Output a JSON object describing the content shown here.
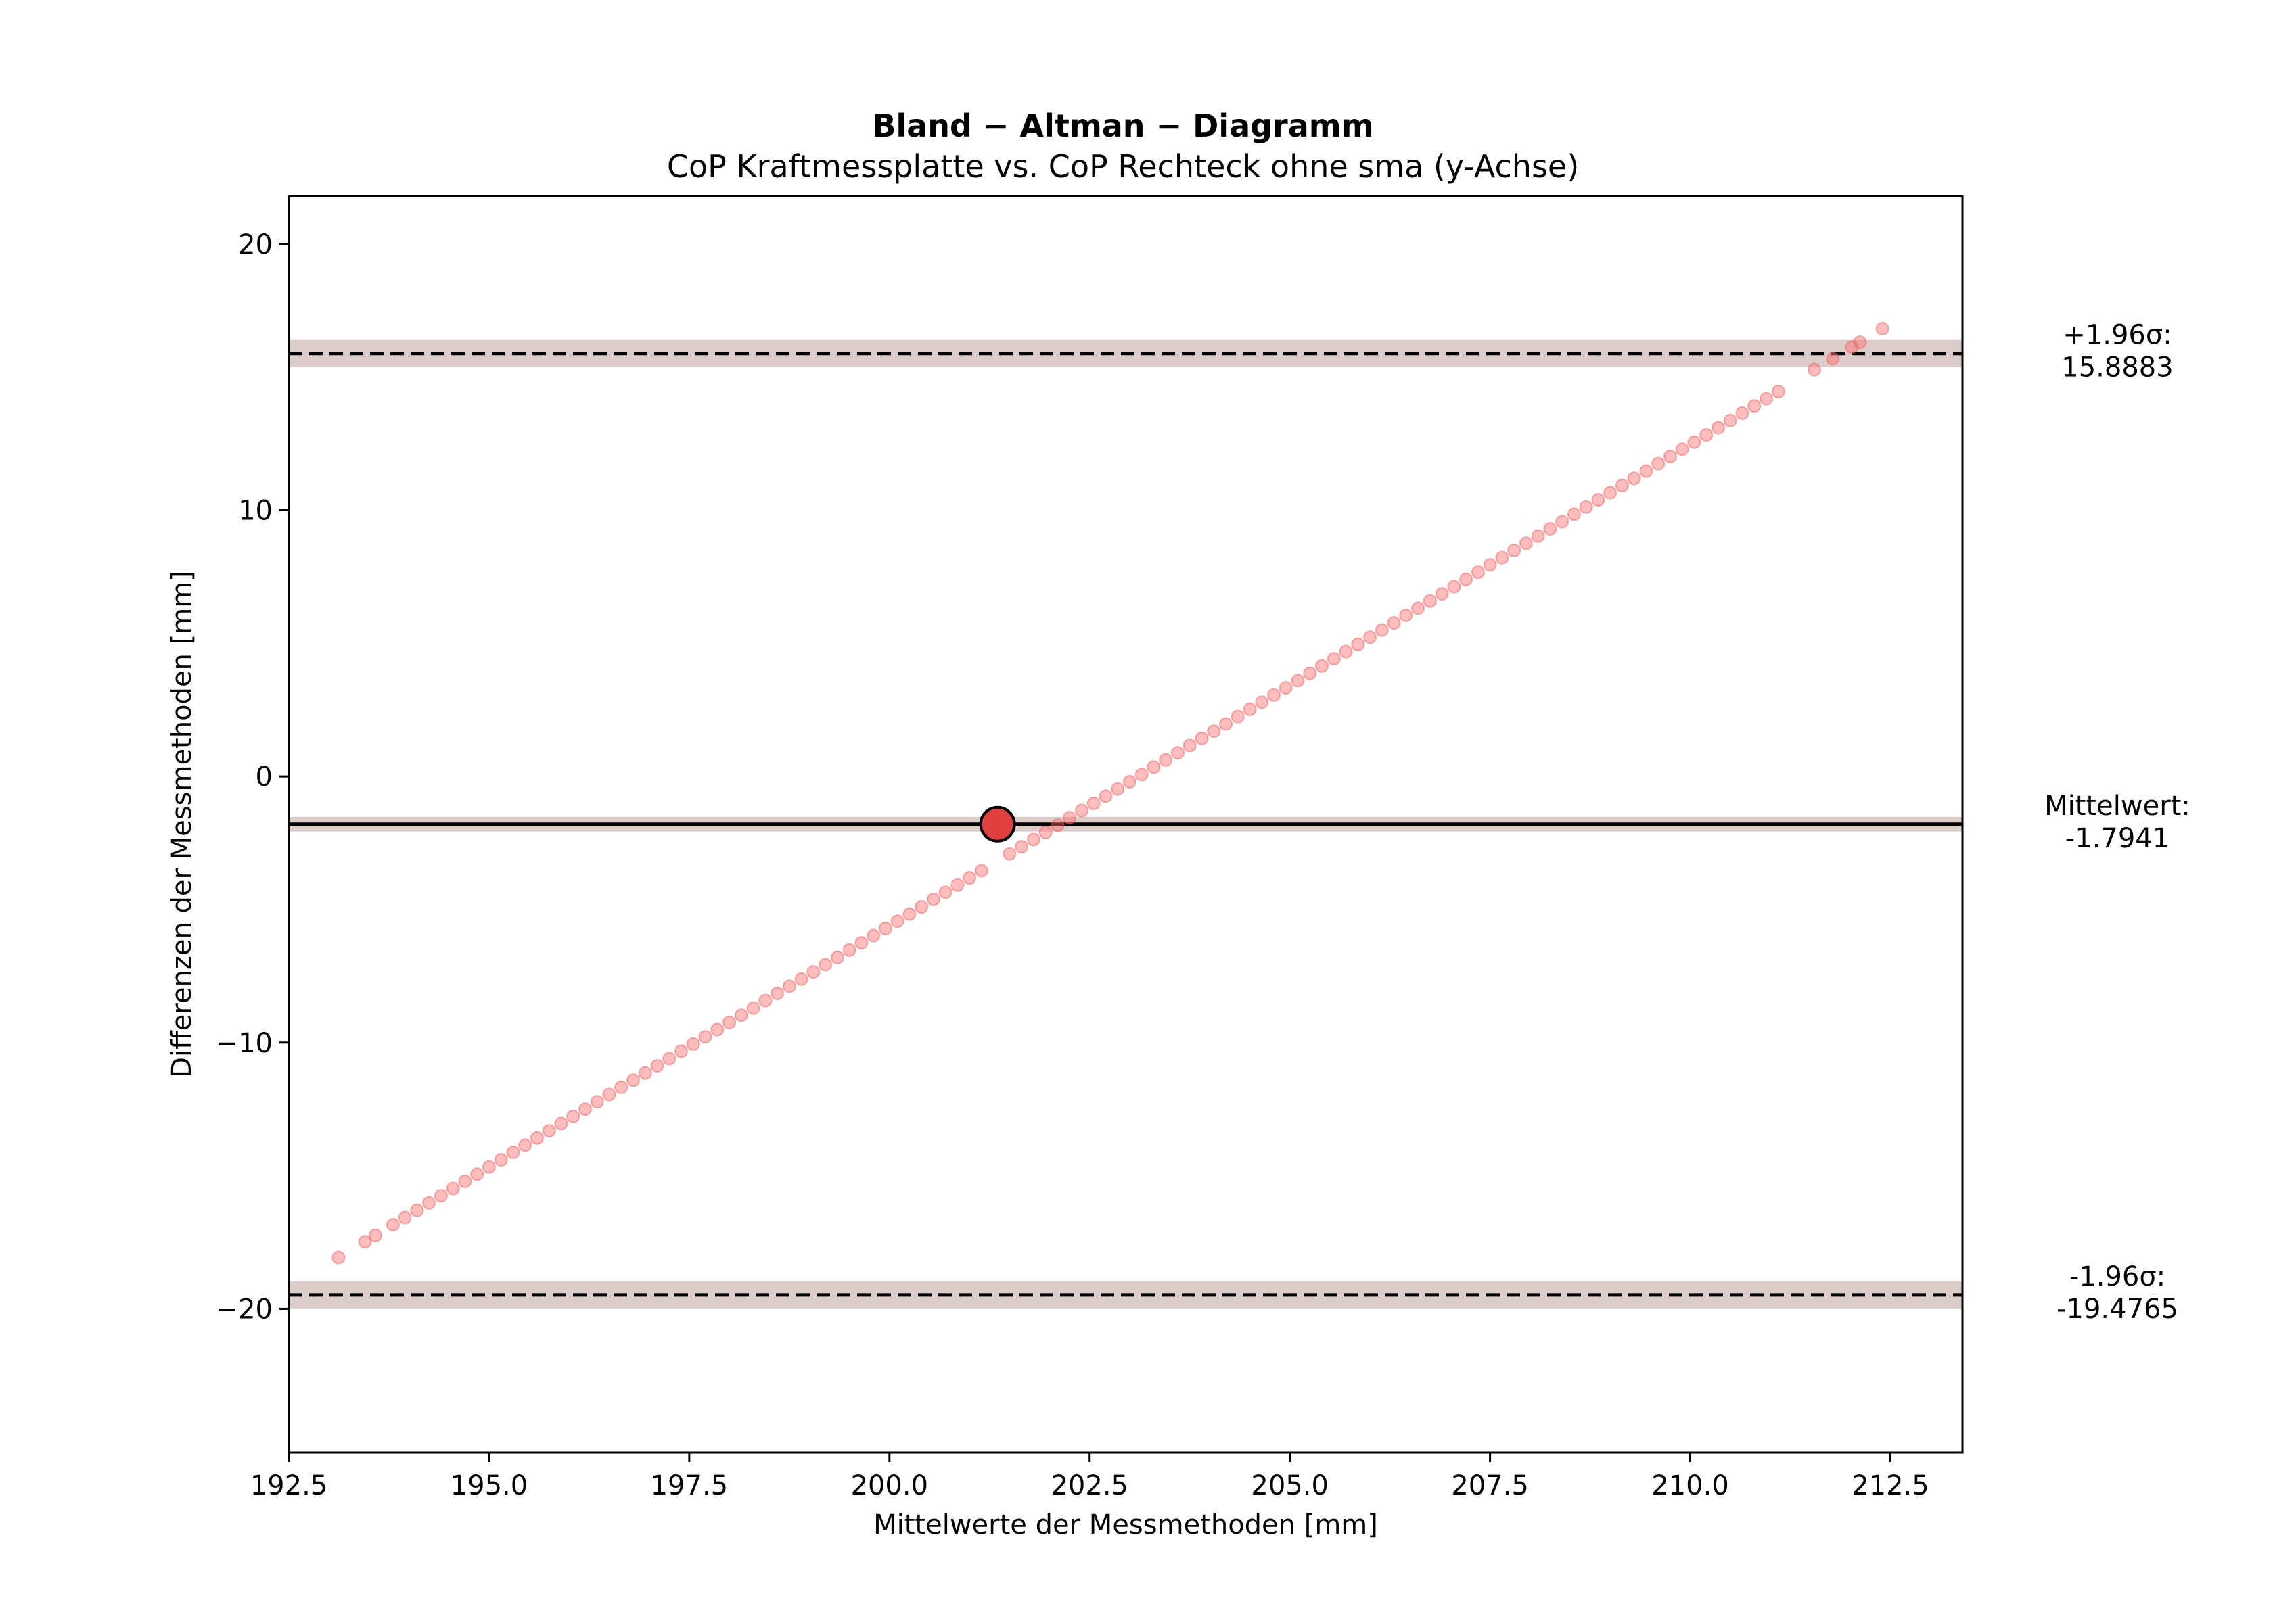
{
  "chart_data": {
    "type": "scatter",
    "title": "Bland − Altman − Diagramm",
    "subtitle": "CoP Kraftmessplatte vs. CoP Rechteck ohne sma (y-Achse)",
    "xlabel": "Mittelwerte der Messmethoden [mm]",
    "ylabel": "Differenzen der Messmethoden [mm]",
    "xlim": [
      192.5,
      213.4
    ],
    "ylim": [
      -25.4,
      21.8
    ],
    "x_ticks": [
      192.5,
      195.0,
      197.5,
      200.0,
      202.5,
      205.0,
      207.5,
      210.0,
      212.5
    ],
    "x_tick_labels": [
      "192.5",
      "195.0",
      "197.5",
      "200.0",
      "202.5",
      "205.0",
      "207.5",
      "210.0",
      "212.5"
    ],
    "y_ticks": [
      -20,
      -10,
      0,
      10,
      20
    ],
    "y_tick_labels": [
      "−20",
      "−10",
      "0",
      "10",
      "20"
    ],
    "grid": false,
    "point_color": "#ff6b6b",
    "mean_point": {
      "x": 201.35,
      "y": -1.7941,
      "color": "#e04040"
    },
    "band_color": "#d8c8c4",
    "reference_lines": [
      {
        "name": "upper",
        "value": 15.8883,
        "style": "dashed",
        "label_line1": "+1.96σ:",
        "label_line2": "15.8883"
      },
      {
        "name": "mean",
        "value": -1.7941,
        "style": "solid",
        "label_line1": "Mittelwert:",
        "label_line2": "-1.7941"
      },
      {
        "name": "lower",
        "value": -19.4765,
        "style": "dashed",
        "label_line1": "-1.96σ:",
        "label_line2": "-19.4765"
      }
    ],
    "series": [
      {
        "x": [
          193.12,
          193.45,
          193.58,
          193.8,
          193.95,
          194.1,
          194.25,
          194.4,
          194.55,
          194.7,
          194.85,
          195.0,
          195.15,
          195.3,
          195.45,
          195.6,
          195.75,
          195.9,
          196.05,
          196.2,
          196.35,
          196.5,
          196.65,
          196.8,
          196.95,
          197.1,
          197.25,
          197.4,
          197.55,
          197.7,
          197.85,
          198.0,
          198.15,
          198.3,
          198.45,
          198.6,
          198.75,
          198.9,
          199.05,
          199.2,
          199.35,
          199.5,
          199.65,
          199.8,
          199.95,
          200.1,
          200.25,
          200.4,
          200.55,
          200.7,
          200.85,
          201.0,
          201.15,
          201.5,
          201.65,
          201.8,
          201.95,
          202.1,
          202.25,
          202.4,
          202.55,
          202.7,
          202.85,
          203.0,
          203.15,
          203.3,
          203.45,
          203.6,
          203.75,
          203.9,
          204.05,
          204.2,
          204.35,
          204.5,
          204.65,
          204.8,
          204.95,
          205.1,
          205.25,
          205.4,
          205.55,
          205.7,
          205.85,
          206.0,
          206.15,
          206.3,
          206.45,
          206.6,
          206.75,
          206.9,
          207.05,
          207.2,
          207.35,
          207.5,
          207.65,
          207.8,
          207.95,
          208.1,
          208.25,
          208.4,
          208.55,
          208.7,
          208.85,
          209.0,
          209.15,
          209.3,
          209.45,
          209.6,
          209.75,
          209.9,
          210.05,
          210.2,
          210.35,
          210.5,
          210.65,
          210.8,
          210.95,
          211.1,
          211.55,
          211.78,
          212.02,
          212.12,
          212.4
        ],
        "y": [
          -18.07,
          -17.48,
          -17.24,
          -16.84,
          -16.57,
          -16.3,
          -16.02,
          -15.75,
          -15.48,
          -15.21,
          -14.94,
          -14.67,
          -14.4,
          -14.12,
          -13.85,
          -13.58,
          -13.31,
          -13.04,
          -12.77,
          -12.5,
          -12.22,
          -11.95,
          -11.68,
          -11.41,
          -11.14,
          -10.87,
          -10.6,
          -10.32,
          -10.05,
          -9.78,
          -9.51,
          -9.24,
          -8.97,
          -8.7,
          -8.42,
          -8.15,
          -7.88,
          -7.61,
          -7.34,
          -7.07,
          -6.8,
          -6.52,
          -6.25,
          -5.98,
          -5.71,
          -5.44,
          -5.17,
          -4.9,
          -4.62,
          -4.35,
          -4.08,
          -3.81,
          -3.54,
          -2.91,
          -2.64,
          -2.37,
          -2.1,
          -1.83,
          -1.55,
          -1.28,
          -1.01,
          -0.74,
          -0.47,
          -0.2,
          0.07,
          0.35,
          0.62,
          0.89,
          1.16,
          1.43,
          1.7,
          1.97,
          2.25,
          2.52,
          2.79,
          3.06,
          3.33,
          3.6,
          3.87,
          4.15,
          4.42,
          4.69,
          4.96,
          5.23,
          5.5,
          5.77,
          6.05,
          6.32,
          6.59,
          6.86,
          7.13,
          7.4,
          7.67,
          7.95,
          8.22,
          8.49,
          8.76,
          9.03,
          9.3,
          9.57,
          9.85,
          10.12,
          10.39,
          10.66,
          10.93,
          11.2,
          11.47,
          11.75,
          12.02,
          12.29,
          12.56,
          12.83,
          13.1,
          13.37,
          13.65,
          13.92,
          14.19,
          14.46,
          15.28,
          15.69,
          16.13,
          16.31,
          16.82
        ]
      }
    ]
  }
}
